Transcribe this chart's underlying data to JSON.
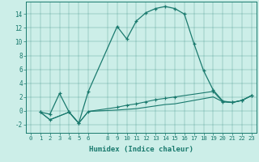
{
  "xlabel": "Humidex (Indice chaleur)",
  "bg_color": "#cceee8",
  "line_color": "#1a7a6e",
  "xticks": [
    0,
    1,
    2,
    3,
    4,
    5,
    6,
    8,
    9,
    10,
    11,
    12,
    13,
    14,
    15,
    16,
    17,
    18,
    19,
    20,
    21,
    22,
    23
  ],
  "yticks": [
    -2,
    0,
    2,
    4,
    6,
    8,
    10,
    12,
    14
  ],
  "xlim": [
    -0.5,
    23.5
  ],
  "ylim": [
    -3.2,
    15.8
  ],
  "curve1_x": [
    1,
    2,
    3,
    4,
    5,
    6,
    9,
    10,
    11,
    12,
    13,
    14,
    15,
    16,
    17,
    18,
    19,
    20,
    21,
    22,
    23
  ],
  "curve1_y": [
    -0.2,
    -0.5,
    2.5,
    -0.2,
    -1.8,
    2.8,
    12.2,
    10.4,
    13.0,
    14.2,
    14.8,
    15.1,
    14.8,
    14.0,
    9.7,
    5.8,
    3.0,
    1.4,
    1.2,
    1.5,
    2.2
  ],
  "curve2_x": [
    1,
    2,
    4,
    5,
    6,
    9,
    10,
    11,
    12,
    13,
    14,
    15,
    19,
    20,
    21,
    22,
    23
  ],
  "curve2_y": [
    -0.2,
    -1.3,
    -0.2,
    -1.8,
    -0.1,
    0.5,
    0.8,
    1.0,
    1.3,
    1.6,
    1.8,
    2.0,
    2.8,
    1.3,
    1.2,
    1.5,
    2.2
  ],
  "curve3_x": [
    1,
    2,
    4,
    5,
    6,
    9,
    10,
    11,
    12,
    13,
    14,
    15,
    19,
    20,
    21,
    22,
    23
  ],
  "curve3_y": [
    -0.2,
    -1.3,
    -0.2,
    -1.8,
    -0.1,
    0.1,
    0.2,
    0.3,
    0.5,
    0.7,
    0.9,
    1.0,
    2.0,
    1.3,
    1.2,
    1.5,
    2.2
  ]
}
